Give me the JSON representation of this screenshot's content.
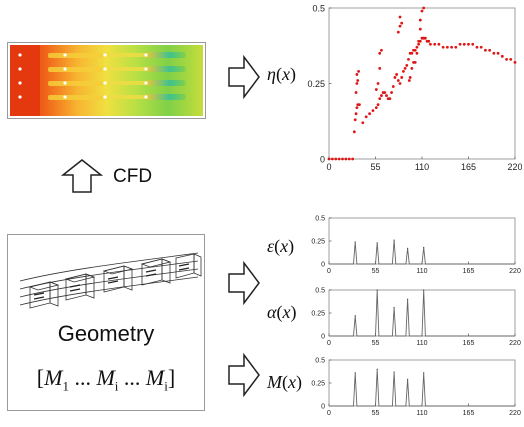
{
  "left": {
    "cfd_label": "CFD",
    "geometry_label": "Geometry",
    "matrix": {
      "open": "[",
      "close": "]",
      "terms": [
        {
          "base": "M",
          "sub": "1"
        },
        {
          "sep": "..."
        },
        {
          "base": "M",
          "sub": "i"
        },
        {
          "sep": "..."
        },
        {
          "base": "M",
          "sub": "i"
        }
      ]
    }
  },
  "labels": {
    "eta": {
      "sym": "η",
      "open": "(",
      "var": "x",
      "close": ")"
    },
    "epsilon": {
      "sym": "ε",
      "open": "(",
      "var": "x",
      "close": ")"
    },
    "alpha": {
      "sym": "α",
      "open": "(",
      "var": "x",
      "close": ")"
    },
    "m": {
      "sym": "M",
      "open": "(",
      "var": "x",
      "close": ")"
    }
  },
  "chart_data": [
    {
      "id": "eta",
      "type": "scatter",
      "xlim": [
        0,
        220
      ],
      "ylim": [
        0,
        0.5
      ],
      "xticks": [
        0,
        55,
        110,
        165,
        220
      ],
      "yticks": [
        0,
        0.25,
        0.5
      ],
      "series": [
        {
          "color": "#e01515",
          "points": [
            [
              0,
              0
            ],
            [
              4,
              0
            ],
            [
              8,
              0
            ],
            [
              12,
              0
            ],
            [
              16,
              0
            ],
            [
              20,
              0
            ],
            [
              24,
              0
            ],
            [
              28,
              0
            ],
            [
              30,
              0.09
            ],
            [
              31,
              0.13
            ],
            [
              32,
              0.15
            ],
            [
              33,
              0.17
            ],
            [
              34,
              0.18
            ],
            [
              36,
              0.18
            ],
            [
              40,
              0.12
            ],
            [
              44,
              0.14
            ],
            [
              48,
              0.15
            ],
            [
              52,
              0.16
            ],
            [
              56,
              0.17
            ],
            [
              58,
              0.18
            ],
            [
              60,
              0.2
            ],
            [
              62,
              0.21
            ],
            [
              64,
              0.22
            ],
            [
              66,
              0.22
            ],
            [
              68,
              0.21
            ],
            [
              70,
              0.2
            ],
            [
              72,
              0.2
            ],
            [
              74,
              0.22
            ],
            [
              76,
              0.24
            ],
            [
              78,
              0.27
            ],
            [
              80,
              0.28
            ],
            [
              82,
              0.26
            ],
            [
              84,
              0.25
            ],
            [
              86,
              0.27
            ],
            [
              88,
              0.29
            ],
            [
              90,
              0.3
            ],
            [
              92,
              0.31
            ],
            [
              94,
              0.33
            ],
            [
              96,
              0.35
            ],
            [
              98,
              0.35
            ],
            [
              100,
              0.36
            ],
            [
              102,
              0.36
            ],
            [
              104,
              0.37
            ],
            [
              106,
              0.39
            ],
            [
              108,
              0.39
            ],
            [
              110,
              0.4
            ],
            [
              112,
              0.4
            ],
            [
              114,
              0.4
            ],
            [
              116,
              0.39
            ],
            [
              118,
              0.39
            ],
            [
              120,
              0.38
            ],
            [
              125,
              0.38
            ],
            [
              130,
              0.38
            ],
            [
              135,
              0.37
            ],
            [
              140,
              0.37
            ],
            [
              145,
              0.37
            ],
            [
              150,
              0.37
            ],
            [
              155,
              0.38
            ],
            [
              160,
              0.38
            ],
            [
              165,
              0.38
            ],
            [
              170,
              0.38
            ],
            [
              175,
              0.37
            ],
            [
              180,
              0.37
            ],
            [
              185,
              0.36
            ],
            [
              190,
              0.36
            ],
            [
              195,
              0.35
            ],
            [
              200,
              0.35
            ],
            [
              205,
              0.34
            ],
            [
              210,
              0.33
            ],
            [
              215,
              0.33
            ],
            [
              220,
              0.32
            ],
            [
              32,
              0.22
            ],
            [
              33,
              0.25
            ],
            [
              33,
              0.28
            ],
            [
              34,
              0.26
            ],
            [
              35,
              0.29
            ],
            [
              56,
              0.23
            ],
            [
              58,
              0.25
            ],
            [
              60,
              0.3
            ],
            [
              60,
              0.35
            ],
            [
              62,
              0.36
            ],
            [
              82,
              0.42
            ],
            [
              84,
              0.44
            ],
            [
              84,
              0.47
            ],
            [
              86,
              0.45
            ],
            [
              95,
              0.26
            ],
            [
              96,
              0.27
            ],
            [
              98,
              0.3
            ],
            [
              100,
              0.32
            ],
            [
              102,
              0.32
            ],
            [
              104,
              0.35
            ],
            [
              106,
              0.38
            ],
            [
              108,
              0.43
            ],
            [
              108,
              0.46
            ],
            [
              110,
              0.49
            ],
            [
              112,
              0.5
            ]
          ]
        }
      ]
    },
    {
      "id": "epsilon",
      "type": "line",
      "xlim": [
        0,
        220
      ],
      "ylim": [
        0,
        0.5
      ],
      "xticks": [
        0,
        55,
        110,
        165,
        220
      ],
      "yticks": [
        0,
        0.25,
        0.5
      ],
      "peaks": [
        [
          31,
          0.24
        ],
        [
          57,
          0.23
        ],
        [
          77,
          0.26
        ],
        [
          93,
          0.17
        ],
        [
          112,
          0.18
        ]
      ]
    },
    {
      "id": "alpha",
      "type": "line",
      "xlim": [
        0,
        220
      ],
      "ylim": [
        0,
        0.5
      ],
      "xticks": [
        0,
        55,
        110,
        165,
        220
      ],
      "yticks": [
        0,
        0.25,
        0.5
      ],
      "peaks": [
        [
          31,
          0.22
        ],
        [
          57,
          0.5
        ],
        [
          77,
          0.31
        ],
        [
          93,
          0.4
        ],
        [
          112,
          0.5
        ]
      ]
    },
    {
      "id": "m",
      "type": "line",
      "xlim": [
        0,
        220
      ],
      "ylim": [
        0,
        0.5
      ],
      "xticks": [
        0,
        55,
        110,
        165,
        220
      ],
      "yticks": [
        0,
        0.25,
        0.5
      ],
      "peaks": [
        [
          31,
          0.36
        ],
        [
          57,
          0.4
        ],
        [
          77,
          0.37
        ],
        [
          93,
          0.29
        ],
        [
          112,
          0.36
        ]
      ]
    }
  ]
}
